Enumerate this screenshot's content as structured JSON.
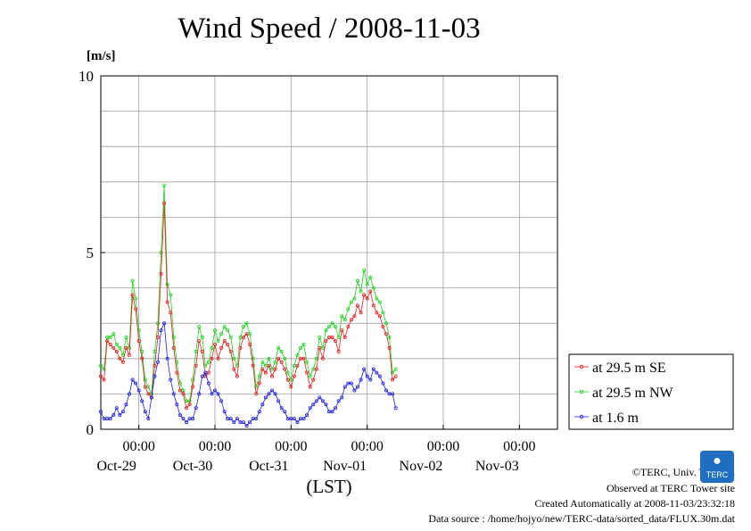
{
  "page": {
    "title": "Wind Speed / 2008-11-03",
    "copyright": "©TERC, Univ. Tsukuba",
    "observed": "Observed at TERC Tower site",
    "created": "Created Automatically at 2008-11-03/23:32:18",
    "source": "Data source : /home/hojyo/new/TERC-data/sorted_data/FLUX.30m.dat",
    "logo_text": "TERC"
  },
  "chart_data": {
    "type": "line",
    "title": "Wind Speed / 2008-11-03",
    "ylabel": "[m/s]",
    "xlabel": "(LST)",
    "ylim": [
      0,
      10
    ],
    "yticks": [
      0,
      5,
      10
    ],
    "x_unit": "hours since 2008-10-28 12:00 LST",
    "xlim": [
      0,
      144
    ],
    "xticks": [
      {
        "x": 12,
        "time": "00:00",
        "date": "Oct-29"
      },
      {
        "x": 36,
        "time": "00:00",
        "date": "Oct-30"
      },
      {
        "x": 60,
        "time": "00:00",
        "date": "Oct-31"
      },
      {
        "x": 84,
        "time": "00:00",
        "date": "Nov-01"
      },
      {
        "x": 108,
        "time": "00:00",
        "date": "Nov-02"
      },
      {
        "x": 132,
        "time": "00:00",
        "date": "Nov-03"
      }
    ],
    "grid": true,
    "legend_position": "right, outside plot",
    "series": [
      {
        "name": "at 29.5 m SE",
        "color": "#e02020",
        "x": [
          0,
          1,
          2,
          3,
          4,
          5,
          6,
          7,
          8,
          9,
          10,
          11,
          12,
          13,
          14,
          15,
          16,
          17,
          18,
          19,
          20,
          21,
          22,
          23,
          24,
          25,
          26,
          27,
          28,
          29,
          30,
          31,
          32,
          33,
          34,
          35,
          36,
          37,
          38,
          39,
          40,
          41,
          42,
          43,
          44,
          45,
          46,
          47,
          48,
          49,
          50,
          51,
          52,
          53,
          54,
          55,
          56,
          57,
          58,
          59,
          60,
          61,
          62,
          63,
          64,
          65,
          66,
          67,
          68,
          69,
          70,
          71,
          72,
          73,
          74,
          75,
          76,
          77,
          78,
          79,
          80,
          81,
          82,
          83,
          84,
          85,
          86,
          87,
          88,
          89,
          90,
          91,
          92,
          93
        ],
        "values": [
          1.5,
          1.4,
          2.5,
          2.4,
          2.3,
          2.2,
          2.0,
          1.9,
          2.3,
          2.1,
          3.8,
          3.4,
          2.5,
          2.0,
          1.2,
          1.0,
          0.9,
          1.8,
          2.6,
          4.4,
          6.4,
          3.6,
          3.3,
          2.3,
          1.6,
          1.1,
          1.0,
          0.6,
          0.7,
          1.2,
          1.8,
          2.5,
          2.2,
          1.5,
          1.6,
          2.0,
          2.4,
          2.0,
          2.3,
          2.5,
          2.4,
          2.2,
          1.7,
          1.5,
          2.3,
          2.6,
          2.7,
          2.4,
          1.8,
          1.0,
          1.3,
          1.7,
          1.6,
          1.8,
          1.5,
          1.7,
          2.0,
          1.9,
          1.7,
          1.4,
          1.2,
          1.5,
          1.8,
          2.0,
          2.0,
          1.6,
          1.2,
          1.4,
          1.7,
          2.3,
          2.0,
          2.5,
          2.6,
          2.6,
          2.5,
          2.2,
          2.8,
          2.6,
          2.9,
          3.1,
          3.2,
          3.5,
          3.3,
          3.8,
          3.7,
          3.9,
          3.5,
          3.3,
          3.2,
          2.9,
          2.7,
          2.3,
          1.4,
          1.5
        ]
      },
      {
        "name": "at 29.5 m NW",
        "color": "#20d020",
        "x": [
          0,
          1,
          2,
          3,
          4,
          5,
          6,
          7,
          8,
          9,
          10,
          11,
          12,
          13,
          14,
          15,
          16,
          17,
          18,
          19,
          20,
          21,
          22,
          23,
          24,
          25,
          26,
          27,
          28,
          29,
          30,
          31,
          32,
          33,
          34,
          35,
          36,
          37,
          38,
          39,
          40,
          41,
          42,
          43,
          44,
          45,
          46,
          47,
          48,
          49,
          50,
          51,
          52,
          53,
          54,
          55,
          56,
          57,
          58,
          59,
          60,
          61,
          62,
          63,
          64,
          65,
          66,
          67,
          68,
          69,
          70,
          71,
          72,
          73,
          74,
          75,
          76,
          77,
          78,
          79,
          80,
          81,
          82,
          83,
          84,
          85,
          86,
          87,
          88,
          89,
          90,
          91,
          92,
          93
        ],
        "values": [
          1.8,
          1.7,
          2.6,
          2.6,
          2.7,
          2.4,
          2.3,
          2.1,
          2.6,
          2.3,
          4.2,
          3.7,
          2.8,
          2.2,
          1.4,
          1.2,
          1.0,
          2.2,
          3.0,
          5.0,
          6.9,
          4.1,
          3.8,
          2.6,
          1.9,
          1.3,
          1.1,
          0.8,
          0.8,
          1.4,
          2.2,
          2.9,
          2.6,
          1.8,
          1.9,
          2.3,
          2.8,
          2.5,
          2.7,
          2.9,
          2.8,
          2.6,
          2.0,
          1.8,
          2.6,
          2.9,
          3.0,
          2.7,
          2.0,
          1.2,
          1.5,
          1.9,
          1.8,
          2.0,
          1.7,
          1.9,
          2.3,
          2.2,
          2.0,
          1.6,
          1.4,
          1.8,
          2.1,
          2.3,
          2.4,
          1.9,
          1.5,
          1.7,
          2.0,
          2.6,
          2.3,
          2.8,
          2.9,
          3.0,
          2.9,
          2.6,
          3.2,
          3.1,
          3.4,
          3.6,
          3.7,
          4.2,
          3.9,
          4.5,
          4.1,
          4.3,
          4.0,
          3.7,
          3.6,
          3.3,
          3.0,
          2.6,
          1.6,
          1.7
        ]
      },
      {
        "name": "at 1.6 m",
        "color": "#2020e0",
        "x": [
          0,
          1,
          2,
          3,
          4,
          5,
          6,
          7,
          8,
          9,
          10,
          11,
          12,
          13,
          14,
          15,
          16,
          17,
          18,
          19,
          20,
          21,
          22,
          23,
          24,
          25,
          26,
          27,
          28,
          29,
          30,
          31,
          32,
          33,
          34,
          35,
          36,
          37,
          38,
          39,
          40,
          41,
          42,
          43,
          44,
          45,
          46,
          47,
          48,
          49,
          50,
          51,
          52,
          53,
          54,
          55,
          56,
          57,
          58,
          59,
          60,
          61,
          62,
          63,
          64,
          65,
          66,
          67,
          68,
          69,
          70,
          71,
          72,
          73,
          74,
          75,
          76,
          77,
          78,
          79,
          80,
          81,
          82,
          83,
          84,
          85,
          86,
          87,
          88,
          89,
          90,
          91,
          92,
          93
        ],
        "values": [
          0.5,
          0.3,
          0.3,
          0.3,
          0.4,
          0.6,
          0.4,
          0.5,
          0.7,
          1.0,
          1.4,
          1.3,
          1.1,
          0.8,
          0.5,
          0.3,
          0.9,
          1.5,
          1.9,
          2.8,
          3.0,
          2.0,
          1.4,
          1.0,
          0.7,
          0.4,
          0.3,
          0.2,
          0.3,
          0.3,
          0.6,
          1.0,
          1.5,
          1.6,
          1.3,
          1.0,
          1.1,
          1.0,
          0.8,
          0.5,
          0.3,
          0.3,
          0.2,
          0.3,
          0.2,
          0.2,
          0.1,
          0.2,
          0.3,
          0.3,
          0.5,
          0.7,
          0.9,
          1.0,
          1.1,
          1.0,
          0.8,
          0.6,
          0.5,
          0.3,
          0.3,
          0.3,
          0.2,
          0.3,
          0.3,
          0.4,
          0.6,
          0.7,
          0.8,
          0.9,
          0.8,
          0.7,
          0.5,
          0.5,
          0.6,
          0.8,
          0.9,
          1.2,
          1.3,
          1.3,
          1.1,
          1.2,
          1.4,
          1.7,
          1.5,
          1.4,
          1.7,
          1.6,
          1.5,
          1.3,
          1.1,
          1.0,
          1.0,
          0.6
        ]
      }
    ]
  }
}
